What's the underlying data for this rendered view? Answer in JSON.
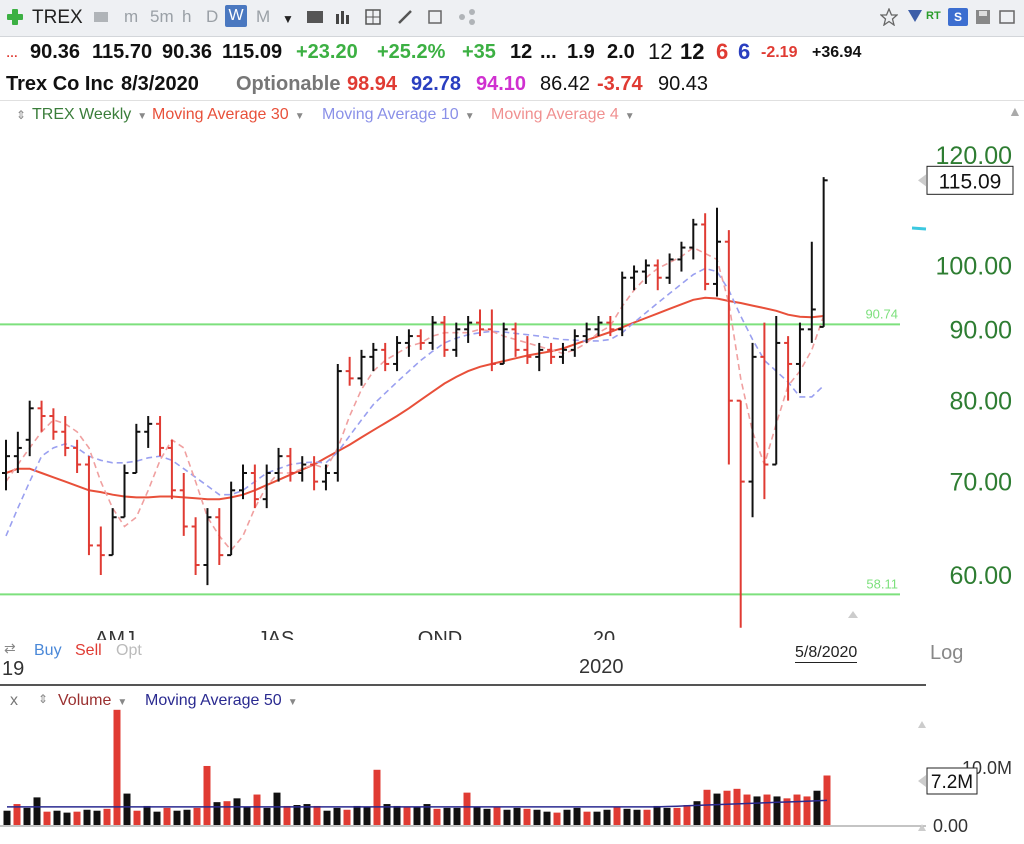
{
  "toolbar": {
    "symbol": "TREX",
    "timeframes": [
      "m",
      "5m",
      "h",
      "D",
      "W",
      "M"
    ],
    "active_timeframe": "W",
    "rt_label": "RT"
  },
  "quote": {
    "open": "90.36",
    "high": "115.70",
    "low": "90.36",
    "close": "115.09",
    "change": "+23.20",
    "change_pct": "+25.2%",
    "val_a": "+35",
    "val_b": "12",
    "val_c": "...",
    "val_d": "1.9",
    "val_e": "2.0",
    "val_f": "12",
    "val_g": "12",
    "val_h": "6",
    "val_i": "6",
    "val_j": "-2.19",
    "val_k": "+36.94",
    "name": "Trex Co Inc",
    "date": "8/3/2020",
    "optionable": "Optionable",
    "v1": "98.94",
    "v2": "92.78",
    "v3": "94.10",
    "v4": "86.42",
    "v5": "-3.74",
    "v6": "90.43"
  },
  "legend": {
    "price_label": "TREX Weekly",
    "ma30_label": "Moving Average 30",
    "ma10_label": "Moving Average 10",
    "ma4_label": "Moving Average 4"
  },
  "colors": {
    "green": "#3cb043",
    "red": "#e03b33",
    "blue": "#3c3cc8",
    "magenta": "#d030d0",
    "ma30": "#e8503a",
    "ma10": "#9aa0f0",
    "ma4": "#f0a0a0",
    "hline": "#7de07d",
    "axis_text": "#2e7d32",
    "bar_up": "#111111",
    "bar_down": "#e03b33"
  },
  "chart_data": {
    "type": "ohlc",
    "scale": "log",
    "y_ticks": [
      "120.00",
      "100.00",
      "90.00",
      "80.00",
      "70.00",
      "60.00"
    ],
    "y_tick_values": [
      120,
      100,
      90,
      80,
      70,
      60
    ],
    "last_price_label": "115.09",
    "last_price": 115.09,
    "hlines": [
      {
        "value": 90.74,
        "label": "90.74"
      },
      {
        "value": 58.11,
        "label": "58.11"
      }
    ],
    "x_labels": [
      "AMJ",
      "JAS",
      "OND",
      "20"
    ],
    "year_label": "2020",
    "year_prev": "19",
    "date_label": "5/8/2020",
    "log_label": "Log",
    "buy_label": "Buy",
    "sell_label": "Sell",
    "opt_label": "Opt",
    "bars": [
      [
        71,
        75,
        69,
        73
      ],
      [
        73,
        76,
        71,
        74
      ],
      [
        75,
        80,
        73,
        79
      ],
      [
        79,
        80,
        76,
        78
      ],
      [
        78,
        79,
        75,
        76
      ],
      [
        76,
        78,
        73,
        74
      ],
      [
        74,
        75,
        71,
        72
      ],
      [
        72,
        73,
        62,
        63
      ],
      [
        63,
        65,
        60,
        62
      ],
      [
        62,
        67,
        62,
        66
      ],
      [
        66,
        72,
        66,
        71
      ],
      [
        71,
        77,
        71,
        76
      ],
      [
        76,
        78,
        74,
        77
      ],
      [
        77,
        78,
        73,
        74
      ],
      [
        74,
        75,
        68,
        69
      ],
      [
        69,
        71,
        64,
        65
      ],
      [
        65,
        66,
        60,
        61
      ],
      [
        61,
        67,
        59,
        66
      ],
      [
        66,
        67,
        61,
        62
      ],
      [
        62,
        70,
        62,
        69
      ],
      [
        69,
        72,
        68,
        71
      ],
      [
        71,
        72,
        67,
        68
      ],
      [
        68,
        72,
        67,
        71
      ],
      [
        71,
        74,
        70,
        73
      ],
      [
        73,
        74,
        70,
        71
      ],
      [
        71,
        73,
        70,
        72
      ],
      [
        72,
        73,
        69,
        70
      ],
      [
        70,
        72,
        69,
        71
      ],
      [
        71,
        85,
        70,
        84
      ],
      [
        84,
        86,
        82,
        83
      ],
      [
        83,
        87,
        82,
        86
      ],
      [
        86,
        88,
        84,
        87
      ],
      [
        87,
        88,
        84,
        85
      ],
      [
        85,
        89,
        84,
        88
      ],
      [
        88,
        90,
        86,
        89
      ],
      [
        89,
        90,
        87,
        88
      ],
      [
        88,
        92,
        87,
        91
      ],
      [
        91,
        92,
        86,
        87
      ],
      [
        87,
        91,
        86,
        90
      ],
      [
        90,
        92,
        88,
        91
      ],
      [
        91,
        93,
        89,
        90
      ],
      [
        90,
        93,
        84,
        85
      ],
      [
        85,
        91,
        85,
        90
      ],
      [
        90,
        91,
        86,
        87
      ],
      [
        87,
        89,
        85,
        86
      ],
      [
        86,
        88,
        84,
        87
      ],
      [
        87,
        88,
        85,
        86
      ],
      [
        86,
        88,
        85,
        87
      ],
      [
        87,
        90,
        86,
        89
      ],
      [
        89,
        91,
        88,
        90
      ],
      [
        90,
        92,
        89,
        91
      ],
      [
        91,
        92,
        89,
        90
      ],
      [
        90,
        99,
        89,
        98
      ],
      [
        98,
        100,
        96,
        99
      ],
      [
        99,
        101,
        97,
        100
      ],
      [
        100,
        101,
        96,
        98
      ],
      [
        98,
        102,
        97,
        101
      ],
      [
        101,
        104,
        99,
        103
      ],
      [
        103,
        108,
        101,
        107
      ],
      [
        107,
        109,
        96,
        97
      ],
      [
        97,
        110,
        95,
        104
      ],
      [
        104,
        106,
        72,
        80
      ],
      [
        80,
        74,
        55,
        70
      ],
      [
        70,
        88,
        66,
        86
      ],
      [
        86,
        91,
        68,
        72
      ],
      [
        72,
        92,
        72,
        88
      ],
      [
        88,
        89,
        80,
        85
      ],
      [
        85,
        91,
        81,
        90
      ],
      [
        90,
        104,
        88,
        93
      ],
      [
        90.36,
        115.7,
        90.36,
        115.09
      ]
    ],
    "ma30": [
      71,
      71.5,
      71.5,
      71,
      70.5,
      70,
      69.5,
      69,
      68.8,
      68.5,
      68.3,
      68.2,
      68.2,
      68.3,
      68.3,
      68.2,
      68.1,
      68,
      68,
      68.2,
      68.5,
      69,
      69.6,
      70.2,
      70.8,
      71.4,
      72,
      72.8,
      73.6,
      74.4,
      75.3,
      76.2,
      77.1,
      78,
      79,
      80.1,
      81.2,
      82.3,
      83.2,
      84,
      84.6,
      85,
      85.4,
      85.8,
      86.2,
      86.5,
      86.8,
      87.2,
      87.8,
      88.4,
      89,
      89.6,
      90.3,
      91,
      91.7,
      92.4,
      93.1,
      93.8,
      94.5,
      94.8,
      94.7,
      94.3,
      94,
      93.6,
      93.2,
      92.8,
      92.2,
      91.9,
      91.8,
      92
    ],
    "ma10": [
      64,
      67,
      70,
      73,
      74,
      74.5,
      74,
      73,
      72.5,
      72.2,
      72.2,
      72.4,
      72.8,
      73,
      72.5,
      71.5,
      70.5,
      69.5,
      68.5,
      68.5,
      69,
      70,
      71,
      71.5,
      72,
      72.2,
      72.3,
      72.2,
      73.5,
      75.5,
      77.5,
      79.5,
      81,
      82.5,
      84,
      85.5,
      86.8,
      88,
      88.7,
      89.2,
      89.5,
      89.7,
      89.6,
      89.4,
      89.2,
      89,
      88.7,
      88.5,
      88.4,
      88.3,
      88.3,
      88.5,
      89.5,
      91,
      92.5,
      94,
      95.5,
      97,
      98.5,
      99.5,
      99,
      96,
      92,
      88.5,
      85.5,
      84,
      82.5,
      80.5,
      80.5,
      82
    ],
    "ma4": [
      70,
      72,
      74,
      76,
      77.5,
      77,
      76,
      74,
      70,
      67,
      65,
      66,
      69,
      72.5,
      75,
      74,
      70,
      66,
      64,
      62.5,
      64,
      67,
      69.5,
      71,
      71,
      71.5,
      72,
      71.5,
      74,
      78,
      81.5,
      84,
      85.5,
      86.5,
      87.5,
      88,
      89,
      89.5,
      89.5,
      89.5,
      90,
      89.7,
      89,
      88.5,
      88,
      87.5,
      87,
      86.5,
      87,
      88,
      89.5,
      90.5,
      93.5,
      96,
      98,
      99.5,
      100.5,
      101.5,
      103,
      102,
      101,
      94,
      83,
      76,
      72,
      77,
      82,
      84,
      87,
      92
    ]
  },
  "volume": {
    "header_x": "x",
    "label": "Volume",
    "ma_label": "Moving Average 50",
    "tick_top": "10.0M",
    "tick_bottom": "0.00",
    "last_label": "7.2M",
    "values": [
      1.5,
      2.2,
      1.8,
      2.9,
      1.4,
      1.5,
      1.3,
      1.4,
      1.6,
      1.5,
      1.7,
      12.1,
      3.3,
      1.5,
      2.0,
      1.4,
      1.8,
      1.5,
      1.6,
      1.8,
      6.2,
      2.4,
      2.5,
      2.8,
      1.9,
      3.2,
      1.8,
      3.4,
      2.0,
      2.1,
      2.2,
      2.0,
      1.5,
      1.8,
      1.6,
      2.0,
      1.9,
      5.8,
      2.2,
      2.0,
      1.9,
      1.9,
      2.2,
      1.7,
      1.8,
      1.8,
      3.4,
      1.9,
      1.7,
      1.9,
      1.6,
      1.8,
      1.7,
      1.6,
      1.4,
      1.3,
      1.6,
      1.8,
      1.4,
      1.4,
      1.6,
      1.9,
      1.7,
      1.6,
      1.6,
      2.0,
      1.8,
      1.8,
      2.1,
      2.5,
      3.7,
      3.3,
      3.6,
      3.8,
      3.2,
      3.0,
      3.2,
      3.0,
      2.8,
      3.2,
      3.0,
      3.6,
      5.2
    ]
  }
}
